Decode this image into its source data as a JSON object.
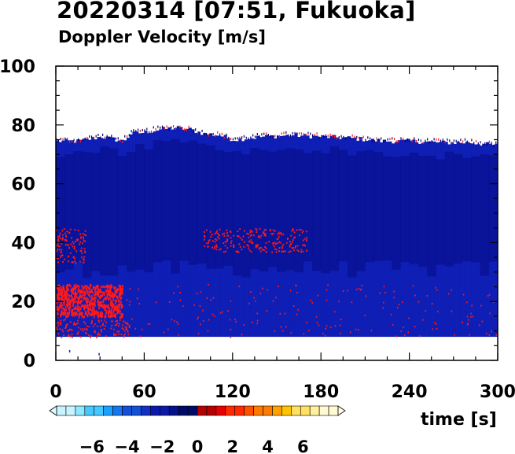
{
  "chart_data": {
    "type": "heatmap",
    "title": "20220314 [07:51, Fukuoka]",
    "subtitle": "Doppler Velocity [m/s]",
    "xlabel": "time [s]",
    "ylabel": "",
    "xlim": [
      0,
      300
    ],
    "ylim": [
      0,
      100
    ],
    "x_ticks": [
      0,
      60,
      120,
      180,
      240,
      300
    ],
    "y_ticks": [
      0,
      20,
      40,
      60,
      80,
      100
    ],
    "data_height_range_bottom": 8,
    "echo_top_profile": {
      "time": [
        0,
        15,
        25,
        30,
        45,
        50,
        60,
        70,
        80,
        90,
        100,
        110,
        120,
        140,
        160,
        180,
        200,
        220,
        240,
        260,
        280,
        300
      ],
      "height": [
        74.5,
        74.5,
        75.5,
        76,
        74.5,
        77,
        77.5,
        78.5,
        79,
        78.5,
        77,
        76.5,
        75,
        76,
        76.5,
        76,
        75.5,
        74.5,
        74.5,
        74,
        74,
        73
      ]
    },
    "dominant_velocity_m_s": -2.5,
    "positive_velocity_regions": [
      {
        "time": [
          0,
          45
        ],
        "height": [
          15,
          26
        ],
        "velocity_m_s": 1.5
      },
      {
        "time": [
          0,
          50
        ],
        "height": [
          8,
          14
        ],
        "velocity_m_s": 1
      },
      {
        "time": [
          0,
          20
        ],
        "height": [
          33,
          45
        ],
        "velocity_m_s": 1
      },
      {
        "time": [
          100,
          170
        ],
        "height": [
          37,
          45
        ],
        "velocity_m_s": 1
      }
    ],
    "colorbar": {
      "range": [
        -8,
        8
      ],
      "tick_labels": [
        "−6",
        "−4",
        "−2",
        "0",
        "2",
        "4",
        "6"
      ],
      "tick_values": [
        -6,
        -4,
        -2,
        0,
        2,
        4,
        6
      ]
    }
  },
  "colors": {
    "negative_strong": "#00006a",
    "negative_dominant": "#0f1fb5",
    "positive": "#ff1a1a",
    "background": "#ffffff"
  }
}
